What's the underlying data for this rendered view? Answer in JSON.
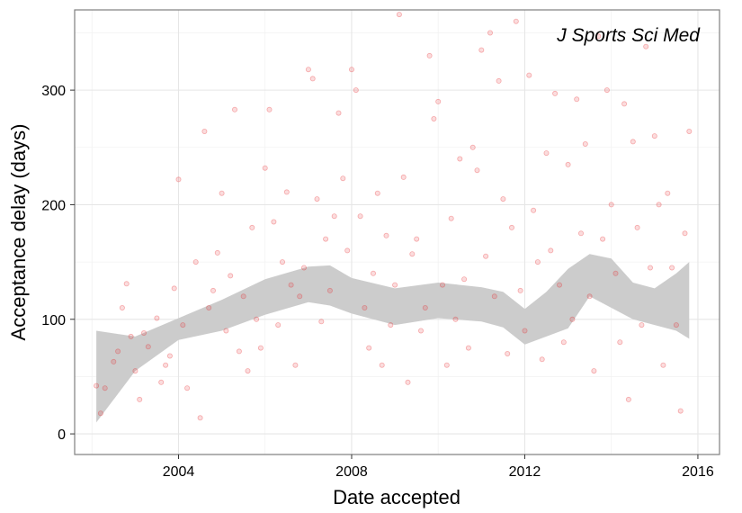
{
  "chart_data": {
    "type": "scatter",
    "annotation": "J Sports Sci Med",
    "xlabel": "Date accepted",
    "ylabel": "Acceptance delay (days)",
    "xlim": [
      2001.6,
      2016.5
    ],
    "ylim": [
      -18,
      370
    ],
    "x_ticks": [
      2004,
      2008,
      2012,
      2016
    ],
    "y_ticks": [
      0,
      100,
      200,
      300
    ],
    "grid": true,
    "point_color": "#e8272a",
    "band_color": "#cccccc",
    "smooth_fit": {
      "x": [
        2002.1,
        2003.0,
        2004.0,
        2005.0,
        2006.0,
        2007.0,
        2007.5,
        2008.0,
        2009.0,
        2010.0,
        2011.0,
        2011.5,
        2012.0,
        2012.5,
        2013.0,
        2013.5,
        2014.0,
        2014.5,
        2015.0,
        2015.5,
        2015.8
      ],
      "y": [
        50,
        70,
        92,
        105,
        120,
        131,
        130,
        122,
        112,
        115,
        113,
        108,
        96,
        106,
        119,
        139,
        134,
        117,
        112,
        118,
        117
      ],
      "lower": [
        10,
        55,
        82,
        90,
        104,
        115,
        112,
        105,
        95,
        101,
        98,
        93,
        78,
        85,
        92,
        120,
        110,
        100,
        95,
        90,
        83
      ],
      "upper": [
        90,
        85,
        101,
        117,
        135,
        146,
        147,
        136,
        127,
        132,
        128,
        124,
        109,
        124,
        144,
        157,
        153,
        132,
        127,
        140,
        150
      ]
    },
    "points": [
      [
        2002.1,
        42
      ],
      [
        2002.2,
        18
      ],
      [
        2002.3,
        40
      ],
      [
        2002.5,
        63
      ],
      [
        2002.6,
        72
      ],
      [
        2002.7,
        110
      ],
      [
        2002.8,
        131
      ],
      [
        2002.9,
        85
      ],
      [
        2003.0,
        55
      ],
      [
        2003.1,
        30
      ],
      [
        2003.2,
        88
      ],
      [
        2003.3,
        76
      ],
      [
        2003.5,
        101
      ],
      [
        2003.6,
        45
      ],
      [
        2003.7,
        60
      ],
      [
        2003.8,
        68
      ],
      [
        2003.9,
        127
      ],
      [
        2004.0,
        222
      ],
      [
        2004.1,
        95
      ],
      [
        2004.2,
        40
      ],
      [
        2004.4,
        150
      ],
      [
        2004.5,
        14
      ],
      [
        2004.6,
        264
      ],
      [
        2004.7,
        110
      ],
      [
        2004.8,
        125
      ],
      [
        2004.9,
        158
      ],
      [
        2005.0,
        210
      ],
      [
        2005.1,
        90
      ],
      [
        2005.2,
        138
      ],
      [
        2005.3,
        283
      ],
      [
        2005.4,
        72
      ],
      [
        2005.5,
        120
      ],
      [
        2005.6,
        55
      ],
      [
        2005.7,
        180
      ],
      [
        2005.8,
        100
      ],
      [
        2005.9,
        75
      ],
      [
        2006.0,
        232
      ],
      [
        2006.1,
        283
      ],
      [
        2006.2,
        185
      ],
      [
        2006.3,
        95
      ],
      [
        2006.4,
        150
      ],
      [
        2006.5,
        211
      ],
      [
        2006.6,
        130
      ],
      [
        2006.7,
        60
      ],
      [
        2006.8,
        120
      ],
      [
        2006.9,
        145
      ],
      [
        2007.0,
        318
      ],
      [
        2007.1,
        310
      ],
      [
        2007.2,
        205
      ],
      [
        2007.3,
        98
      ],
      [
        2007.4,
        170
      ],
      [
        2007.5,
        125
      ],
      [
        2007.6,
        190
      ],
      [
        2007.7,
        280
      ],
      [
        2007.8,
        223
      ],
      [
        2007.9,
        160
      ],
      [
        2008.0,
        318
      ],
      [
        2008.1,
        300
      ],
      [
        2008.2,
        190
      ],
      [
        2008.3,
        110
      ],
      [
        2008.4,
        75
      ],
      [
        2008.5,
        140
      ],
      [
        2008.6,
        210
      ],
      [
        2008.7,
        60
      ],
      [
        2008.8,
        173
      ],
      [
        2008.9,
        95
      ],
      [
        2009.0,
        130
      ],
      [
        2009.1,
        366
      ],
      [
        2009.2,
        224
      ],
      [
        2009.3,
        45
      ],
      [
        2009.4,
        157
      ],
      [
        2009.5,
        170
      ],
      [
        2009.6,
        90
      ],
      [
        2009.7,
        110
      ],
      [
        2009.8,
        330
      ],
      [
        2009.9,
        275
      ],
      [
        2010.0,
        290
      ],
      [
        2010.1,
        130
      ],
      [
        2010.2,
        60
      ],
      [
        2010.3,
        188
      ],
      [
        2010.4,
        100
      ],
      [
        2010.5,
        240
      ],
      [
        2010.6,
        135
      ],
      [
        2010.7,
        75
      ],
      [
        2010.8,
        250
      ],
      [
        2010.9,
        230
      ],
      [
        2011.0,
        335
      ],
      [
        2011.1,
        155
      ],
      [
        2011.2,
        350
      ],
      [
        2011.3,
        120
      ],
      [
        2011.4,
        308
      ],
      [
        2011.5,
        205
      ],
      [
        2011.6,
        70
      ],
      [
        2011.7,
        180
      ],
      [
        2011.8,
        360
      ],
      [
        2011.9,
        125
      ],
      [
        2012.0,
        90
      ],
      [
        2012.1,
        313
      ],
      [
        2012.2,
        195
      ],
      [
        2012.3,
        150
      ],
      [
        2012.4,
        65
      ],
      [
        2012.5,
        245
      ],
      [
        2012.6,
        160
      ],
      [
        2012.7,
        297
      ],
      [
        2012.8,
        130
      ],
      [
        2012.9,
        80
      ],
      [
        2013.0,
        235
      ],
      [
        2013.1,
        100
      ],
      [
        2013.2,
        292
      ],
      [
        2013.3,
        175
      ],
      [
        2013.4,
        253
      ],
      [
        2013.5,
        120
      ],
      [
        2013.6,
        55
      ],
      [
        2013.7,
        347
      ],
      [
        2013.8,
        170
      ],
      [
        2013.9,
        300
      ],
      [
        2014.0,
        200
      ],
      [
        2014.1,
        140
      ],
      [
        2014.2,
        80
      ],
      [
        2014.3,
        288
      ],
      [
        2014.4,
        30
      ],
      [
        2014.5,
        255
      ],
      [
        2014.6,
        180
      ],
      [
        2014.7,
        95
      ],
      [
        2014.8,
        338
      ],
      [
        2014.9,
        145
      ],
      [
        2015.0,
        260
      ],
      [
        2015.1,
        200
      ],
      [
        2015.2,
        60
      ],
      [
        2015.3,
        210
      ],
      [
        2015.4,
        145
      ],
      [
        2015.5,
        95
      ],
      [
        2015.6,
        20
      ],
      [
        2015.7,
        175
      ],
      [
        2015.8,
        264
      ]
    ]
  }
}
